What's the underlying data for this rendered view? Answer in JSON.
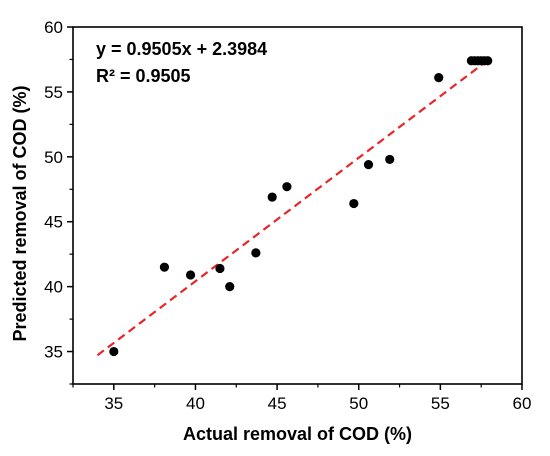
{
  "chart_data": {
    "type": "scatter",
    "xlabel": "Actual removal of COD (%)",
    "ylabel": "Predicted removal of COD (%)",
    "xlim": [
      32.5,
      60
    ],
    "ylim": [
      32.5,
      60
    ],
    "xticks": [
      35,
      40,
      45,
      50,
      55,
      60
    ],
    "yticks": [
      35,
      40,
      45,
      50,
      55,
      60
    ],
    "grid": false,
    "annotations": {
      "equation": "y = 0.9505x + 2.3984",
      "r_squared": "R² = 0.9505"
    },
    "points": [
      {
        "x": 35.0,
        "y": 35.0
      },
      {
        "x": 38.1,
        "y": 41.5
      },
      {
        "x": 39.7,
        "y": 40.9
      },
      {
        "x": 41.5,
        "y": 41.4
      },
      {
        "x": 42.1,
        "y": 40.0
      },
      {
        "x": 43.7,
        "y": 42.6
      },
      {
        "x": 44.7,
        "y": 46.9
      },
      {
        "x": 45.6,
        "y": 47.7
      },
      {
        "x": 49.7,
        "y": 46.4
      },
      {
        "x": 50.6,
        "y": 49.4
      },
      {
        "x": 51.9,
        "y": 49.8
      },
      {
        "x": 54.9,
        "y": 56.1
      },
      {
        "x": 56.9,
        "y": 57.4
      },
      {
        "x": 57.1,
        "y": 57.4
      },
      {
        "x": 57.3,
        "y": 57.4
      },
      {
        "x": 57.5,
        "y": 57.4
      },
      {
        "x": 57.7,
        "y": 57.4
      },
      {
        "x": 57.9,
        "y": 57.4
      }
    ],
    "fit_line": {
      "slope": 0.9505,
      "intercept": 2.3984,
      "x_range": [
        34,
        58
      ],
      "style": "dashed",
      "color": "#e8262a"
    },
    "marker_color": "#000000"
  }
}
